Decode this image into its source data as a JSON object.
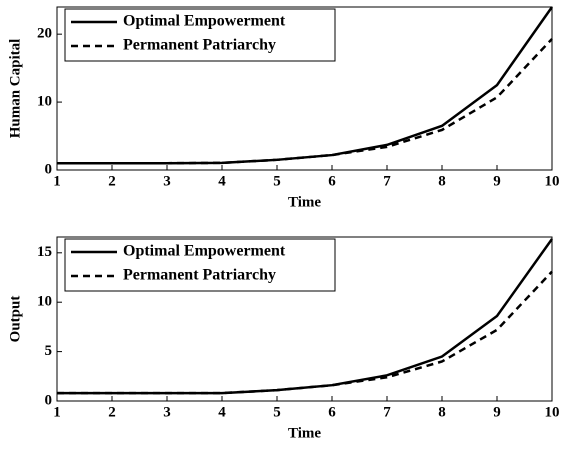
{
  "chart_data": [
    {
      "type": "line",
      "xlabel": "Time",
      "ylabel": "Human Capital",
      "x": [
        1,
        2,
        3,
        4,
        5,
        6,
        7,
        8,
        9,
        10
      ],
      "xlim": [
        1,
        10
      ],
      "xticks": [
        1,
        2,
        3,
        4,
        5,
        6,
        7,
        8,
        9,
        10
      ],
      "ylim": [
        0,
        24
      ],
      "yticks": [
        0,
        10,
        20
      ],
      "legend": "upper left",
      "series": [
        {
          "name": "Optimal Empowerment",
          "color": "#000000",
          "style": "solid",
          "values": [
            1,
            1,
            1,
            1.05,
            1.5,
            2.2,
            3.7,
            6.5,
            12.5,
            24
          ]
        },
        {
          "name": "Permanent Patriarchy",
          "color": "#000000",
          "style": "dashed",
          "values": [
            1,
            1,
            1,
            1.05,
            1.5,
            2.2,
            3.4,
            5.9,
            10.7,
            19.3
          ]
        }
      ]
    },
    {
      "type": "line",
      "xlabel": "Time",
      "ylabel": "Output",
      "x": [
        1,
        2,
        3,
        4,
        5,
        6,
        7,
        8,
        9,
        10
      ],
      "xlim": [
        1,
        10
      ],
      "xticks": [
        1,
        2,
        3,
        4,
        5,
        6,
        7,
        8,
        9,
        10
      ],
      "ylim": [
        0,
        16.6
      ],
      "yticks": [
        0,
        5,
        10,
        15
      ],
      "legend": "upper left",
      "series": [
        {
          "name": "Optimal Empowerment",
          "color": "#000000",
          "style": "solid",
          "values": [
            0.8,
            0.8,
            0.8,
            0.8,
            1.1,
            1.6,
            2.6,
            4.5,
            8.6,
            16.4
          ]
        },
        {
          "name": "Permanent Patriarchy",
          "color": "#000000",
          "style": "dashed",
          "values": [
            0.8,
            0.8,
            0.8,
            0.8,
            1.1,
            1.6,
            2.4,
            4.0,
            7.2,
            13.1
          ]
        }
      ]
    }
  ]
}
